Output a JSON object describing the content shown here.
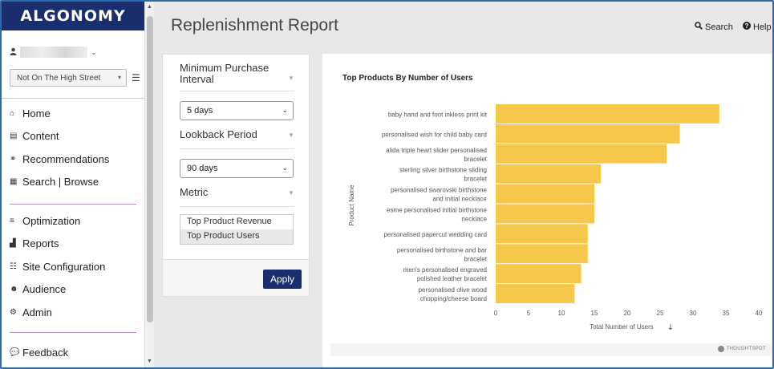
{
  "brand": {
    "name": "ALGONOMY"
  },
  "user": {
    "icon": "user-icon"
  },
  "store": {
    "selected": "Not On The High Street"
  },
  "nav": {
    "group1": [
      {
        "label": "Home",
        "icon": "home-icon"
      },
      {
        "label": "Content",
        "icon": "content-icon"
      },
      {
        "label": "Recommendations",
        "icon": "recommendations-icon"
      },
      {
        "label": "Search | Browse",
        "icon": "search-browse-icon"
      }
    ],
    "group2": [
      {
        "label": "Optimization",
        "icon": "optimization-icon"
      },
      {
        "label": "Reports",
        "icon": "reports-icon"
      },
      {
        "label": "Site Configuration",
        "icon": "site-configuration-icon"
      },
      {
        "label": "Audience",
        "icon": "audience-icon"
      },
      {
        "label": "Admin",
        "icon": "admin-icon"
      }
    ],
    "feedback": {
      "label": "Feedback",
      "icon": "feedback-icon"
    }
  },
  "header": {
    "title": "Replenishment Report",
    "search_label": "Search",
    "help_label": "Help"
  },
  "filters": {
    "min_interval_label": "Minimum Purchase Interval",
    "min_interval_value": "5 days",
    "lookback_label": "Lookback Period",
    "lookback_value": "90 days",
    "metric_label": "Metric",
    "metric_options": [
      "Top Product Revenue",
      "Top Product Users"
    ],
    "metric_selected": "Top Product Users",
    "apply_label": "Apply"
  },
  "chart_data": {
    "type": "bar",
    "orientation": "horizontal",
    "title": "Top Products By Number of Users",
    "xlabel": "Total Number of Users",
    "ylabel": "Product Name",
    "xlim": [
      0,
      40
    ],
    "xticks": [
      0,
      5,
      10,
      15,
      20,
      25,
      30,
      35,
      40
    ],
    "color": "#f5c84c",
    "categories": [
      [
        "baby hand and foot inkless print kit"
      ],
      [
        "personalised wish for child baby card"
      ],
      [
        "alida triple heart slider personalised",
        "bracelet"
      ],
      [
        "sterling silver birthstone sliding",
        "bracelet"
      ],
      [
        "personalised swarovski birthstone",
        "and initial necklace"
      ],
      [
        "esme personalised initial birthstone",
        "necklace"
      ],
      [
        "personalised papercut wedding card"
      ],
      [
        "personalised birthstone and bar",
        "bracelet"
      ],
      [
        "men's personalised engraved",
        "polished leather bracelet"
      ],
      [
        "personalised olive wood",
        "chopping/cheese board"
      ]
    ],
    "values": [
      34,
      28,
      26,
      16,
      15,
      15,
      14,
      14,
      13,
      12
    ],
    "sort_icon": "sort-down-arrow-icon"
  },
  "footer": {
    "powered_by": "THOUGHTSPOT"
  }
}
